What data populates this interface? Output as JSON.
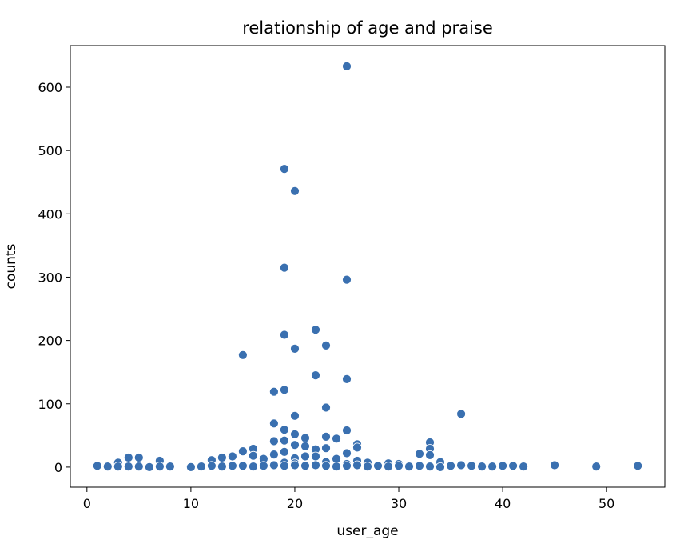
{
  "chart_data": {
    "type": "scatter",
    "title": "relationship of age and praise",
    "xlabel": "user_age",
    "ylabel": "counts",
    "xlim": [
      -1.6,
      55.6
    ],
    "ylim": [
      -31.7,
      665.7
    ],
    "xticks": [
      0,
      10,
      20,
      30,
      40,
      50
    ],
    "yticks": [
      0,
      100,
      200,
      300,
      400,
      500,
      600
    ],
    "grid": false,
    "legend": "none",
    "colors": {
      "point": "#3a70b0",
      "point_edge": "#ffffff",
      "axes": "#000000"
    },
    "points": [
      [
        25,
        633
      ],
      [
        19,
        471
      ],
      [
        20,
        436
      ],
      [
        19,
        315
      ],
      [
        25,
        296
      ],
      [
        22,
        217
      ],
      [
        19,
        209
      ],
      [
        23,
        192
      ],
      [
        20,
        187
      ],
      [
        15,
        177
      ],
      [
        22,
        145
      ],
      [
        25,
        139
      ],
      [
        19,
        122
      ],
      [
        18,
        119
      ],
      [
        23,
        94
      ],
      [
        36,
        84
      ],
      [
        20,
        81
      ],
      [
        18,
        69
      ],
      [
        19,
        59
      ],
      [
        25,
        58
      ],
      [
        20,
        52
      ],
      [
        21,
        46
      ],
      [
        23,
        48
      ],
      [
        24,
        45
      ],
      [
        19,
        42
      ],
      [
        18,
        41
      ],
      [
        33,
        39
      ],
      [
        26,
        36
      ],
      [
        20,
        35
      ],
      [
        21,
        33
      ],
      [
        16,
        29
      ],
      [
        26,
        31
      ],
      [
        23,
        30
      ],
      [
        22,
        28
      ],
      [
        33,
        29
      ],
      [
        15,
        25
      ],
      [
        19,
        24
      ],
      [
        25,
        22
      ],
      [
        32,
        21
      ],
      [
        18,
        20
      ],
      [
        33,
        19
      ],
      [
        16,
        18
      ],
      [
        22,
        17
      ],
      [
        14,
        17
      ],
      [
        21,
        17
      ],
      [
        4,
        15
      ],
      [
        5,
        15
      ],
      [
        13,
        15
      ],
      [
        20,
        14
      ],
      [
        24,
        13
      ],
      [
        17,
        13
      ],
      [
        12,
        11
      ],
      [
        7,
        10
      ],
      [
        26,
        10
      ],
      [
        34,
        8
      ],
      [
        3,
        7
      ],
      [
        27,
        7
      ],
      [
        29,
        6
      ],
      [
        30,
        5
      ],
      [
        19,
        7
      ],
      [
        23,
        8
      ],
      [
        20,
        6
      ],
      [
        25,
        5
      ],
      [
        45,
        3
      ],
      [
        1,
        2
      ],
      [
        2,
        1
      ],
      [
        3,
        1
      ],
      [
        4,
        1
      ],
      [
        5,
        1
      ],
      [
        6,
        0
      ],
      [
        7,
        1
      ],
      [
        8,
        1
      ],
      [
        10,
        0
      ],
      [
        11,
        1
      ],
      [
        12,
        2
      ],
      [
        13,
        1
      ],
      [
        14,
        2
      ],
      [
        15,
        2
      ],
      [
        16,
        1
      ],
      [
        17,
        2
      ],
      [
        18,
        3
      ],
      [
        19,
        2
      ],
      [
        20,
        3
      ],
      [
        21,
        2
      ],
      [
        22,
        3
      ],
      [
        23,
        2
      ],
      [
        24,
        1
      ],
      [
        25,
        2
      ],
      [
        26,
        3
      ],
      [
        27,
        1
      ],
      [
        28,
        2
      ],
      [
        29,
        1
      ],
      [
        30,
        2
      ],
      [
        31,
        1
      ],
      [
        32,
        2
      ],
      [
        33,
        1
      ],
      [
        34,
        0
      ],
      [
        35,
        2
      ],
      [
        36,
        3
      ],
      [
        37,
        2
      ],
      [
        38,
        1
      ],
      [
        39,
        1
      ],
      [
        40,
        2
      ],
      [
        41,
        2
      ],
      [
        42,
        1
      ],
      [
        49,
        1
      ],
      [
        53,
        2
      ]
    ]
  }
}
